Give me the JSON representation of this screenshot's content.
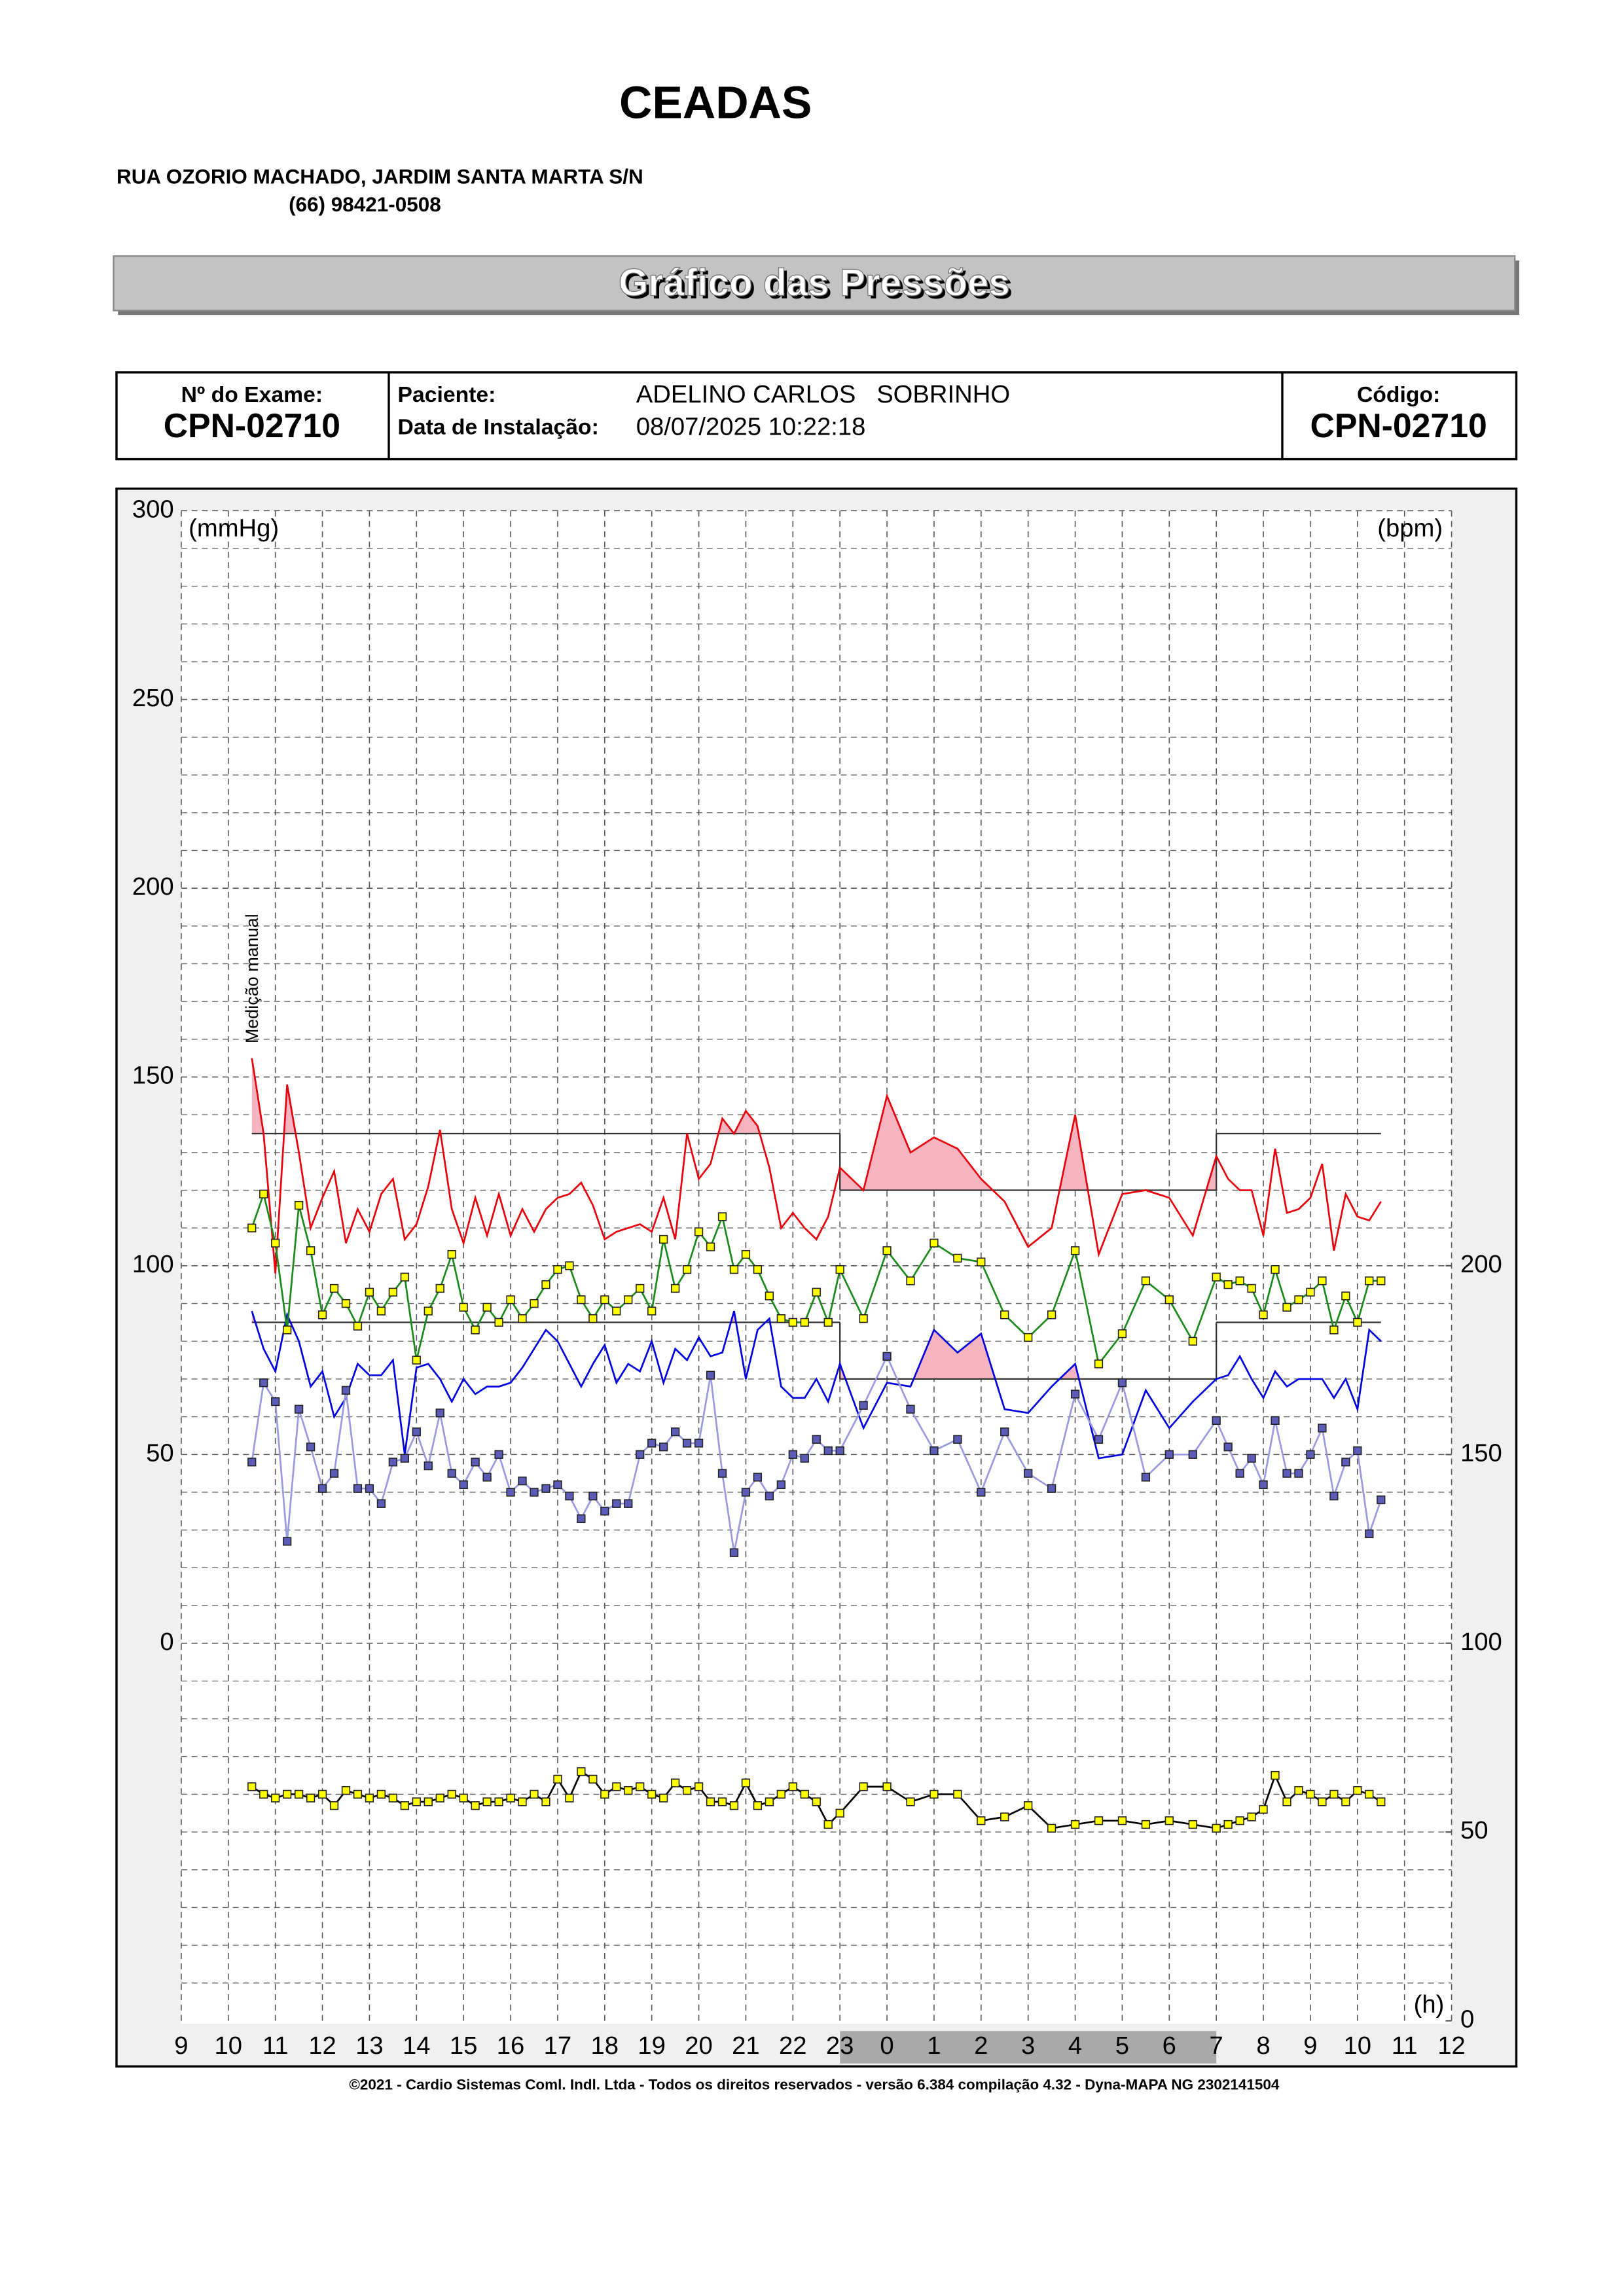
{
  "header": {
    "title": "CEADAS",
    "address": "RUA OZORIO MACHADO, JARDIM SANTA MARTA S/N",
    "phone": "(66) 98421-0508",
    "banner": "Gráfico das Pressões"
  },
  "info": {
    "exam_label": "Nº do Exame:",
    "exam": "CPN-02710",
    "patient_label": "Paciente:",
    "patient": "ADELINO CARLOS   SOBRINHO",
    "install_label": "Data de Instalação:",
    "install": "08/07/2025 10:22:18",
    "code_label": "Código:",
    "code": "CPN-02710"
  },
  "footer": "©2021 - Cardio Sistemas Coml. Indl. Ltda - Todos os direitos reservados - versão 6.384 compilação 4.32 - Dyna-MAPA NG 2302141504",
  "chart_data": {
    "type": "line",
    "y_label": "(mmHg)",
    "y2_label": "(bpm)",
    "x_label": "(h)",
    "annotation": "Medição manual",
    "xlim": [
      9,
      36
    ],
    "xticks": [
      9,
      10,
      11,
      12,
      13,
      14,
      15,
      16,
      17,
      18,
      19,
      20,
      21,
      22,
      23,
      {
        "value": 24,
        "label": "0"
      },
      {
        "value": 25,
        "label": "1"
      },
      {
        "value": 26,
        "label": "2"
      },
      {
        "value": 27,
        "label": "3"
      },
      {
        "value": 28,
        "label": "4"
      },
      {
        "value": 29,
        "label": "5"
      },
      {
        "value": 30,
        "label": "6"
      },
      {
        "value": 31,
        "label": "7"
      },
      {
        "value": 32,
        "label": "8"
      },
      {
        "value": 33,
        "label": "9"
      },
      {
        "value": 34,
        "label": "10"
      },
      {
        "value": 35,
        "label": "11"
      },
      {
        "value": 36,
        "label": "12"
      }
    ],
    "ylim": [
      -100,
      300
    ],
    "yticks": [
      0,
      50,
      100,
      150,
      200,
      250,
      300
    ],
    "y2lim": [
      0,
      400
    ],
    "y2ticks": [
      0,
      50,
      100,
      150,
      200
    ],
    "grid": true,
    "night": [
      23,
      31
    ],
    "thresholds": [
      {
        "start": 10.5,
        "end": 23,
        "sys": 135,
        "dia": 85
      },
      {
        "start": 23,
        "end": 31,
        "sys": 120,
        "dia": 70
      },
      {
        "start": 31,
        "end": 34.5,
        "sys": 135,
        "dia": 85
      }
    ],
    "x": [
      10.5,
      10.75,
      11,
      11.25,
      11.5,
      11.75,
      12,
      12.25,
      12.5,
      12.75,
      13,
      13.25,
      13.5,
      13.75,
      14,
      14.25,
      14.5,
      14.75,
      15,
      15.25,
      15.5,
      15.75,
      16,
      16.25,
      16.5,
      16.75,
      17,
      17.25,
      17.5,
      17.75,
      18,
      18.25,
      18.5,
      18.75,
      19,
      19.25,
      19.5,
      19.75,
      20,
      20.25,
      20.5,
      20.75,
      21,
      21.25,
      21.5,
      21.75,
      22,
      22.25,
      22.5,
      22.75,
      23,
      23.5,
      24,
      24.5,
      25,
      25.5,
      26,
      26.5,
      27,
      27.5,
      28,
      28.5,
      29,
      29.5,
      30,
      30.5,
      31,
      31.25,
      31.5,
      31.75,
      32,
      32.25,
      32.5,
      32.75,
      33,
      33.25,
      33.5,
      33.75,
      34,
      34.25,
      34.5
    ],
    "series": [
      {
        "color": "#e8000b",
        "fill": "#f6b3c0",
        "marker": false,
        "values": [
          155,
          135,
          98,
          148,
          130,
          110,
          118,
          125,
          106,
          115,
          109,
          119,
          123,
          107,
          111,
          121,
          136,
          115,
          106,
          118,
          108,
          119,
          108,
          115,
          109,
          115,
          118,
          119,
          122,
          116,
          107,
          109,
          110,
          111,
          109,
          118,
          107,
          135,
          123,
          127,
          139,
          135,
          141,
          137,
          126,
          110,
          114,
          110,
          107,
          113,
          126,
          120,
          145,
          130,
          134,
          131,
          123,
          117,
          105,
          110,
          140,
          103,
          119,
          120,
          118,
          108,
          129,
          123,
          120,
          120,
          108,
          131,
          114,
          115,
          118,
          127,
          104,
          119,
          113,
          112,
          117
        ]
      },
      {
        "color": "#0000e0",
        "fill": "#f6b3c0",
        "marker": false,
        "values": [
          88,
          78,
          72,
          87,
          80,
          68,
          72,
          60,
          65,
          74,
          71,
          71,
          75,
          50,
          73,
          74,
          70,
          64,
          70,
          66,
          68,
          68,
          69,
          73,
          78,
          83,
          80,
          74,
          68,
          74,
          79,
          69,
          74,
          72,
          80,
          69,
          78,
          75,
          81,
          76,
          77,
          88,
          70,
          83,
          86,
          68,
          65,
          65,
          70,
          64,
          74,
          57,
          69,
          68,
          83,
          77,
          82,
          62,
          61,
          68,
          74,
          49,
          50,
          67,
          57,
          64,
          70,
          71,
          76,
          70,
          65,
          72,
          68,
          70,
          70,
          70,
          65,
          70,
          62,
          83,
          80
        ]
      },
      {
        "color": "#1a8a1a",
        "marker": "#ffff00",
        "values": [
          110,
          119,
          106,
          83,
          116,
          104,
          87,
          94,
          90,
          84,
          93,
          88,
          93,
          97,
          75,
          88,
          94,
          103,
          89,
          83,
          89,
          85,
          91,
          86,
          90,
          95,
          99,
          100,
          91,
          86,
          91,
          88,
          91,
          94,
          88,
          107,
          94,
          99,
          109,
          105,
          113,
          99,
          103,
          99,
          92,
          86,
          85,
          85,
          93,
          85,
          99,
          86,
          104,
          96,
          106,
          102,
          101,
          87,
          81,
          87,
          104,
          74,
          82,
          96,
          91,
          80,
          97,
          95,
          96,
          94,
          87,
          99,
          89,
          91,
          93,
          96,
          83,
          92,
          85,
          96,
          96
        ]
      },
      {
        "color": "#9a9ae0",
        "marker": "#5c5cb8",
        "values": [
          48,
          69,
          64,
          27,
          62,
          52,
          41,
          45,
          67,
          41,
          41,
          37,
          48,
          49,
          56,
          47,
          61,
          45,
          42,
          48,
          44,
          50,
          40,
          43,
          40,
          41,
          42,
          39,
          33,
          39,
          35,
          37,
          37,
          50,
          53,
          52,
          56,
          53,
          53,
          71,
          45,
          24,
          40,
          44,
          39,
          42,
          50,
          49,
          54,
          51,
          51,
          63,
          76,
          62,
          51,
          54,
          40,
          56,
          45,
          41,
          66,
          54,
          69,
          44,
          50,
          50,
          59,
          52,
          45,
          49,
          42,
          59,
          45,
          45,
          50,
          57,
          39,
          48,
          51,
          29,
          38
        ]
      },
      {
        "color": "#000000",
        "marker": "#ffff00",
        "axis": "y2",
        "values": [
          62,
          60,
          59,
          60,
          60,
          59,
          60,
          57,
          61,
          60,
          59,
          60,
          59,
          57,
          58,
          58,
          59,
          60,
          59,
          57,
          58,
          58,
          59,
          58,
          60,
          58,
          64,
          59,
          66,
          64,
          60,
          62,
          61,
          62,
          60,
          59,
          63,
          61,
          62,
          58,
          58,
          57,
          63,
          57,
          58,
          60,
          62,
          60,
          58,
          52,
          55,
          62,
          62,
          58,
          60,
          60,
          53,
          54,
          57,
          51,
          52,
          53,
          53,
          52,
          53,
          52,
          51,
          52,
          53,
          54,
          56,
          65,
          58,
          61,
          60,
          58,
          60,
          58,
          61,
          60,
          58
        ]
      }
    ]
  }
}
